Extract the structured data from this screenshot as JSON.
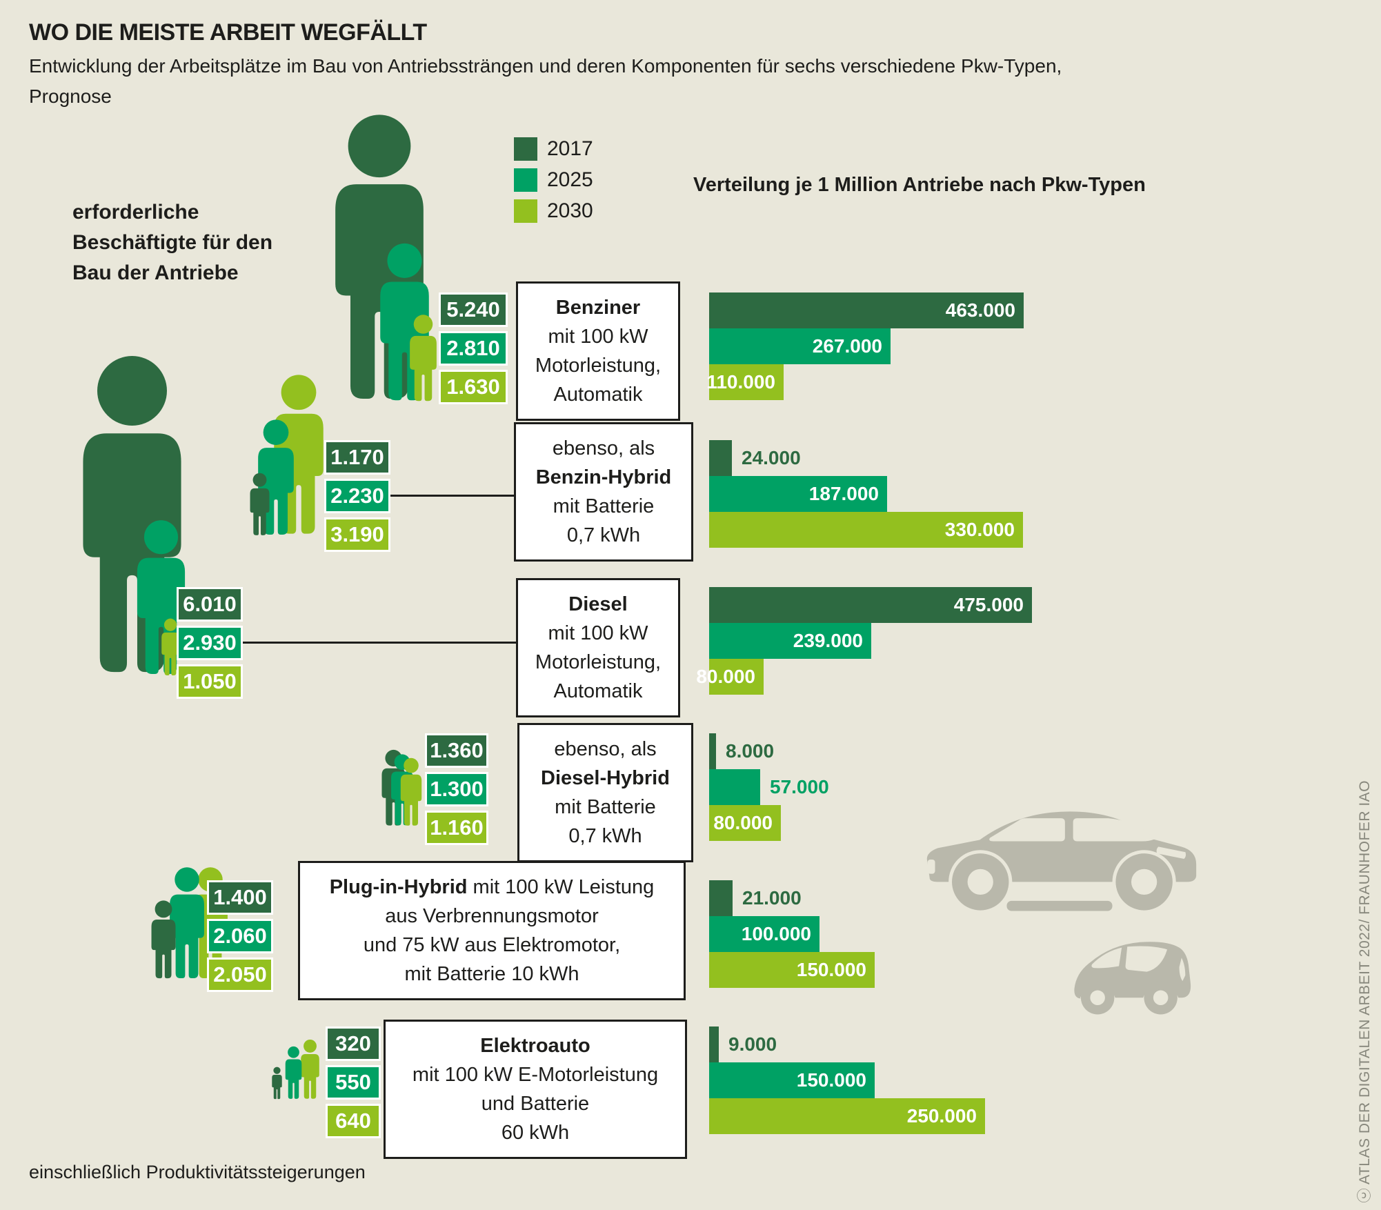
{
  "title": "WO DIE MEISTE ARBEIT WEGFÄLLT",
  "subtitle_lines": [
    "Entwicklung der Arbeitsplätze im Bau von Antriebssträngen und deren Komponenten für sechs verschiedene Pkw-Typen,",
    "Prognose"
  ],
  "left_label_lines": [
    "erforderliche",
    "Beschäftigte für den",
    "Bau der Antriebe"
  ],
  "footer_note": "einschließlich Produktivitätssteigerungen",
  "credit": "ⓒ ATLAS DER DIGITALEN ARBEIT 2022/ FRAUNHOFER IAO",
  "colors": {
    "year2017": "#2d6a41",
    "year2025": "#00a164",
    "year2030": "#93c01f",
    "background": "#e9e7da",
    "text": "#1d1d1b",
    "car_silhouette": "#b9b8ab",
    "credit_text": "#87877c",
    "box_border": "#1d1d1b"
  },
  "icons": {
    "people": "person-pictogram-icon",
    "cars": [
      "sedan-car-icon",
      "city-car-icon"
    ]
  },
  "chart_data": {
    "type": "bar",
    "title": "WO DIE MEISTE ARBEIT WEGFÄLLT",
    "right_header": "Verteilung je 1 Million Antriebe nach Pkw-Typen",
    "left_axis_label": "erforderliche Beschäftigte für den Bau der Antriebe",
    "legend_position": "top",
    "grid": false,
    "legend": [
      {
        "year": "2017",
        "color": "#2d6a41"
      },
      {
        "year": "2025",
        "color": "#00a164"
      },
      {
        "year": "2030",
        "color": "#93c01f"
      }
    ],
    "groups": [
      {
        "id": "benziner",
        "name": "Benziner",
        "box_lines": [
          [
            {
              "text": "Benziner",
              "bold": true
            }
          ],
          [
            {
              "text": "mit 100 kW",
              "bold": false
            }
          ],
          [
            {
              "text": "Motorleistung,",
              "bold": false
            }
          ],
          [
            {
              "text": "Automatik",
              "bold": false
            }
          ]
        ],
        "employees": [
          {
            "year": "2017",
            "label": "5.240",
            "value": 5240
          },
          {
            "year": "2025",
            "label": "2.810",
            "value": 2810
          },
          {
            "year": "2030",
            "label": "1.630",
            "value": 1630
          }
        ],
        "per_million": [
          {
            "year": "2017",
            "label": "463.000",
            "value": 463000,
            "label_position": "inside"
          },
          {
            "year": "2025",
            "label": "267.000",
            "value": 267000,
            "label_position": "inside"
          },
          {
            "year": "2030",
            "label": "110.000",
            "value": 110000,
            "label_position": "inside"
          }
        ]
      },
      {
        "id": "benzin-hybrid",
        "name": "Benzin-Hybrid",
        "box_lines": [
          [
            {
              "text": "ebenso, als",
              "bold": false
            }
          ],
          [
            {
              "text": "Benzin-Hybrid",
              "bold": true
            }
          ],
          [
            {
              "text": "mit Batterie",
              "bold": false
            }
          ],
          [
            {
              "text": "0,7 kWh",
              "bold": false
            }
          ]
        ],
        "employees": [
          {
            "year": "2017",
            "label": "1.170",
            "value": 1170
          },
          {
            "year": "2025",
            "label": "2.230",
            "value": 2230
          },
          {
            "year": "2030",
            "label": "3.190",
            "value": 3190
          }
        ],
        "per_million": [
          {
            "year": "2017",
            "label": "24.000",
            "value": 24000,
            "label_position": "outside"
          },
          {
            "year": "2025",
            "label": "187.000",
            "value": 187000,
            "label_position": "inside"
          },
          {
            "year": "2030",
            "label": "330.000",
            "value": 330000,
            "label_position": "inside"
          }
        ]
      },
      {
        "id": "diesel",
        "name": "Diesel",
        "box_lines": [
          [
            {
              "text": "Diesel",
              "bold": true
            }
          ],
          [
            {
              "text": "mit 100 kW",
              "bold": false
            }
          ],
          [
            {
              "text": "Motorleistung,",
              "bold": false
            }
          ],
          [
            {
              "text": "Automatik",
              "bold": false
            }
          ]
        ],
        "employees": [
          {
            "year": "2017",
            "label": "6.010",
            "value": 6010
          },
          {
            "year": "2025",
            "label": "2.930",
            "value": 2930
          },
          {
            "year": "2030",
            "label": "1.050",
            "value": 1050
          }
        ],
        "per_million": [
          {
            "year": "2017",
            "label": "475.000",
            "value": 475000,
            "label_position": "inside"
          },
          {
            "year": "2025",
            "label": "239.000",
            "value": 239000,
            "label_position": "inside"
          },
          {
            "year": "2030",
            "label": "80.000",
            "value": 80000,
            "label_position": "inside"
          }
        ]
      },
      {
        "id": "diesel-hybrid",
        "name": "Diesel-Hybrid",
        "box_lines": [
          [
            {
              "text": "ebenso, als",
              "bold": false
            }
          ],
          [
            {
              "text": "Diesel-Hybrid",
              "bold": true
            }
          ],
          [
            {
              "text": "mit Batterie",
              "bold": false
            }
          ],
          [
            {
              "text": "0,7 kWh",
              "bold": false
            }
          ]
        ],
        "employees": [
          {
            "year": "2017",
            "label": "1.360",
            "value": 1360
          },
          {
            "year": "2025",
            "label": "1.300",
            "value": 1300
          },
          {
            "year": "2030",
            "label": "1.160",
            "value": 1160
          }
        ],
        "per_million": [
          {
            "year": "2017",
            "label": "8.000",
            "value": 8000,
            "label_position": "outside"
          },
          {
            "year": "2025",
            "label": "57.000",
            "value": 57000,
            "label_position": "outside"
          },
          {
            "year": "2030",
            "label": "80.000",
            "value": 80000,
            "label_position": "inside"
          }
        ]
      },
      {
        "id": "plug-in-hybrid",
        "name": "Plug-in-Hybrid",
        "box_lines": [
          [
            {
              "text": "Plug-in-Hybrid",
              "bold": true
            },
            {
              "text": " mit 100 kW Leistung",
              "bold": false
            }
          ],
          [
            {
              "text": "aus Verbrennungsmotor",
              "bold": false
            }
          ],
          [
            {
              "text": "und 75 kW aus Elektromotor,",
              "bold": false
            }
          ],
          [
            {
              "text": "mit Batterie 10 kWh",
              "bold": false
            }
          ]
        ],
        "employees": [
          {
            "year": "2017",
            "label": "1.400",
            "value": 1400
          },
          {
            "year": "2025",
            "label": "2.060",
            "value": 2060
          },
          {
            "year": "2030",
            "label": "2.050",
            "value": 2050
          }
        ],
        "per_million": [
          {
            "year": "2017",
            "label": "21.000",
            "value": 21000,
            "label_position": "outside"
          },
          {
            "year": "2025",
            "label": "100.000",
            "value": 100000,
            "label_position": "inside"
          },
          {
            "year": "2030",
            "label": "150.000",
            "value": 150000,
            "label_position": "inside"
          }
        ]
      },
      {
        "id": "elektroauto",
        "name": "Elektroauto",
        "box_lines": [
          [
            {
              "text": "Elektroauto",
              "bold": true
            }
          ],
          [
            {
              "text": "mit 100 kW E-Motorleistung",
              "bold": false
            }
          ],
          [
            {
              "text": "und Batterie",
              "bold": false
            }
          ],
          [
            {
              "text": "60 kWh",
              "bold": false
            }
          ]
        ],
        "employees": [
          {
            "year": "2017",
            "label": "320",
            "value": 320
          },
          {
            "year": "2025",
            "label": "550",
            "value": 550
          },
          {
            "year": "2030",
            "label": "640",
            "value": 640
          }
        ],
        "per_million": [
          {
            "year": "2017",
            "label": "9.000",
            "value": 9000,
            "label_position": "outside"
          },
          {
            "year": "2025",
            "label": "150.000",
            "value": 150000,
            "label_position": "inside"
          },
          {
            "year": "2030",
            "label": "250.000",
            "value": 250000,
            "label_position": "inside"
          }
        ]
      }
    ]
  }
}
